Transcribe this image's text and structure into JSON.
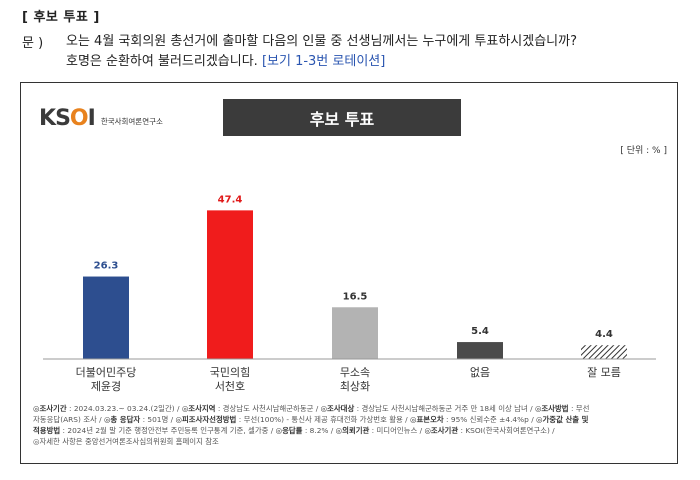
{
  "section": {
    "title": "[ 후보 투표 ]"
  },
  "question": {
    "label": "문 )",
    "line1": "오는 4월 국회의원 총선거에 출마할 다음의 인물 중 선생님께서는 누구에게 투표하시겠습니까?",
    "line2": "호명은 순환하여 불러드리겠습니다.",
    "note": "[보기 1-3번 로테이션]"
  },
  "logo": {
    "mark_k": "K",
    "mark_s": "S",
    "mark_o": "O",
    "mark_i": "I",
    "sub": "한국사회여론연구소"
  },
  "chart_header": "후보 투표",
  "unit": "[ 단위 : % ]",
  "chart_data": {
    "type": "bar",
    "categories": [
      "더불어민주당\n제윤경",
      "국민의힘\n서천호",
      "무소속\n최상화",
      "없음",
      "잘 모름"
    ],
    "values": [
      26.3,
      47.4,
      16.5,
      5.4,
      4.4
    ],
    "value_labels": [
      "26.3",
      "47.4",
      "16.5",
      "5.4",
      "4.4"
    ],
    "colors": [
      "#2d4e8f",
      "#f01c1c",
      "#b3b3b3",
      "#4a4a4a",
      "hatch"
    ],
    "ylim": [
      0,
      50
    ],
    "grid": false,
    "legend": "none"
  },
  "footer": {
    "l1a": "◎조사기간",
    "l1b": " : 2024.03.23.~ 03.24.(2일간)  / ",
    "l1c": "◎조사지역",
    "l1d": " : 경상남도 사천시남해군하동군  / ",
    "l1e": "◎조사대상",
    "l1f": " : 경상남도 사천시남해군하동군 거주 만 18세 이상 남녀  / ",
    "l1g": "◎조사방법",
    "l1h": " : 무선",
    "l2a": "자동응답(ARS) 조사  / ",
    "l2b": "◎총 응답자",
    "l2c": " : 501명  / ",
    "l2d": "◎피조사자선정방법",
    "l2e": " : 무선(100%) - 통신사 제공 휴대전화 가상번호 활용  / ",
    "l2f": "◎표본오차",
    "l2g": " : 95% 신뢰수준 ±4.4%p  / ",
    "l2h": "◎가중값 산출 및",
    "l3a": "적용방법",
    "l3b": " : 2024년 2월 말 기준 행정안전부 주민등록 인구통계 기준, 셀가중  / ",
    "l3c": "◎응답률",
    "l3d": " : 8.2%  / ",
    "l3e": "◎의뢰기관",
    "l3f": " : 미디어인뉴스  / ",
    "l3g": "◎조사기관",
    "l3h": " : KSOI(한국사회여론연구소)  /",
    "l4": "◎자세한 사항은 중앙선거여론조사심의위원회 홈페이지 참조"
  }
}
